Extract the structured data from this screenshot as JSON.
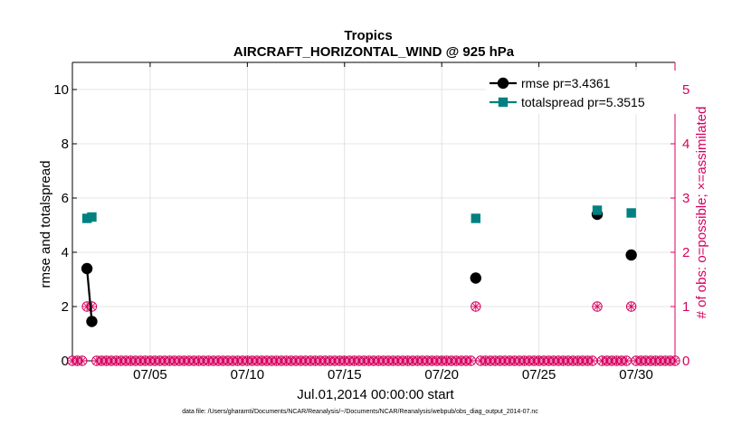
{
  "chart_data": {
    "type": "scatter",
    "title": "Tropics",
    "subtitle": "AIRCRAFT_HORIZONTAL_WIND @ 925 hPa",
    "xlabel": "Jul.01,2014 00:00:00 start",
    "ylabel": "rmse and totalspread",
    "y2label": "# of obs: o=possible; ×=assimilated",
    "footer": "data file: /Users/gharamti/Documents/NCAR/Reanalysis/~/Documents/NCAR/Reanalysis/webpub/obs_diag_output_2014-07.nc",
    "xlim": [
      1,
      32
    ],
    "ylim": [
      0,
      11
    ],
    "y2lim": [
      0,
      5.5
    ],
    "x_ticks": [
      5,
      10,
      15,
      20,
      25,
      30
    ],
    "x_tick_labels": [
      "07/05",
      "07/10",
      "07/15",
      "07/20",
      "07/25",
      "07/30"
    ],
    "y_ticks": [
      0,
      2,
      4,
      6,
      8,
      10
    ],
    "y_tick_labels": [
      "0",
      "2",
      "4",
      "6",
      "8",
      "10"
    ],
    "y2_ticks": [
      0,
      1,
      2,
      3,
      4,
      5
    ],
    "y2_tick_labels": [
      "0",
      "1",
      "2",
      "3",
      "4",
      "5"
    ],
    "grid": true,
    "legend_position": "top-right",
    "series": [
      {
        "name": "rmse pr=3.4361",
        "color": "#000000",
        "marker": "circle",
        "axis": "left",
        "points": [
          {
            "x": 1.75,
            "y": 3.4
          },
          {
            "x": 2.0,
            "y": 1.45
          },
          {
            "x": 21.75,
            "y": 3.05
          },
          {
            "x": 28.0,
            "y": 5.4
          },
          {
            "x": 29.75,
            "y": 3.9
          }
        ],
        "connected_segments": [
          [
            0,
            1
          ]
        ]
      },
      {
        "name": "totalspread pr=5.3515",
        "color": "#008080",
        "marker": "square",
        "axis": "left",
        "points": [
          {
            "x": 1.75,
            "y": 5.25
          },
          {
            "x": 2.0,
            "y": 5.3
          },
          {
            "x": 21.75,
            "y": 5.25
          },
          {
            "x": 28.0,
            "y": 5.55
          },
          {
            "x": 29.75,
            "y": 5.45
          }
        ],
        "connected_segments": [
          [
            0,
            1
          ]
        ]
      },
      {
        "name": "# of obs possible/assimilated",
        "color": "#d6005f",
        "marker": "circle-asterisk",
        "axis": "right",
        "x_start": 1.0,
        "x_step": 0.25,
        "x_end": 32.0,
        "nonzero": [
          {
            "x": 1.75,
            "y": 1
          },
          {
            "x": 2.0,
            "y": 1
          },
          {
            "x": 21.75,
            "y": 1
          },
          {
            "x": 28.0,
            "y": 1
          },
          {
            "x": 29.75,
            "y": 1
          }
        ]
      }
    ],
    "colors": {
      "right_axis": "#d6005f",
      "grid": "#dcdcdc",
      "axis": "#000000"
    }
  }
}
